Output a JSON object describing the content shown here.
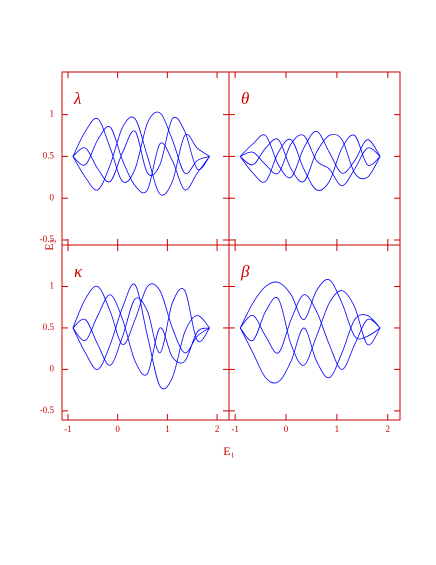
{
  "axis_titles": {
    "x": "E₁",
    "y": "E₂"
  },
  "chart_data": [
    {
      "type": "line",
      "label": "λ",
      "xlim": [
        -1.12,
        2.24
      ],
      "ylim": [
        -0.56,
        1.51
      ],
      "xticks": [
        -1,
        0,
        1,
        2
      ],
      "yticks": [
        -0.5,
        0,
        0.5,
        1
      ],
      "color": "#0000ff",
      "x": [
        -0.9,
        -0.65,
        -0.4,
        -0.15,
        0.1,
        0.35,
        0.6,
        0.85,
        1.1,
        1.35,
        1.6,
        1.85
      ],
      "series": [
        {
          "values": [
            0.5,
            0.8,
            0.95,
            0.6,
            0.2,
            0.35,
            0.9,
            1.02,
            0.7,
            0.3,
            0.45,
            0.5
          ]
        },
        {
          "values": [
            0.5,
            0.25,
            0.1,
            0.4,
            0.85,
            0.95,
            0.5,
            0.05,
            0.2,
            0.75,
            0.6,
            0.5
          ]
        },
        {
          "values": [
            0.5,
            0.6,
            0.35,
            0.2,
            0.55,
            0.8,
            0.3,
            0.4,
            0.95,
            0.8,
            0.35,
            0.5
          ]
        },
        {
          "values": [
            0.5,
            0.4,
            0.7,
            0.85,
            0.45,
            0.15,
            0.1,
            0.65,
            0.45,
            0.1,
            0.3,
            0.5
          ]
        }
      ]
    },
    {
      "type": "line",
      "label": "θ",
      "xlim": [
        -1.12,
        2.24
      ],
      "ylim": [
        -0.56,
        1.51
      ],
      "xticks": [
        -1,
        0,
        1,
        2
      ],
      "yticks": [
        -0.5,
        0,
        0.5,
        1
      ],
      "color": "#0000ff",
      "x": [
        -0.9,
        -0.65,
        -0.4,
        -0.15,
        0.1,
        0.35,
        0.6,
        0.85,
        1.1,
        1.35,
        1.6,
        1.85
      ],
      "series": [
        {
          "values": [
            0.5,
            0.65,
            0.75,
            0.4,
            0.25,
            0.6,
            0.8,
            0.55,
            0.3,
            0.45,
            0.7,
            0.5
          ]
        },
        {
          "values": [
            0.5,
            0.3,
            0.2,
            0.55,
            0.7,
            0.35,
            0.1,
            0.2,
            0.6,
            0.75,
            0.4,
            0.5
          ]
        },
        {
          "values": [
            0.5,
            0.55,
            0.4,
            0.3,
            0.65,
            0.75,
            0.45,
            0.35,
            0.15,
            0.35,
            0.6,
            0.5
          ]
        },
        {
          "values": [
            0.5,
            0.4,
            0.6,
            0.7,
            0.35,
            0.2,
            0.55,
            0.75,
            0.7,
            0.3,
            0.25,
            0.5
          ]
        }
      ]
    },
    {
      "type": "line",
      "label": "κ",
      "xlim": [
        -1.12,
        2.24
      ],
      "ylim": [
        -0.61,
        1.5
      ],
      "xticks": [
        -1,
        0,
        1,
        2
      ],
      "yticks": [
        -0.5,
        0,
        0.5,
        1
      ],
      "color": "#0000ff",
      "x": [
        -0.9,
        -0.65,
        -0.4,
        -0.15,
        0.1,
        0.35,
        0.6,
        0.85,
        1.1,
        1.35,
        1.6,
        1.85
      ],
      "series": [
        {
          "values": [
            0.5,
            0.85,
            1.0,
            0.7,
            0.3,
            0.6,
            1.0,
            0.95,
            0.5,
            0.2,
            0.4,
            0.5
          ]
        },
        {
          "values": [
            0.5,
            0.2,
            0.0,
            0.3,
            0.75,
            1.02,
            0.4,
            -0.2,
            -0.1,
            0.45,
            0.65,
            0.5
          ]
        },
        {
          "values": [
            0.5,
            0.6,
            0.3,
            0.05,
            0.4,
            0.85,
            0.7,
            0.2,
            0.8,
            0.95,
            0.35,
            0.5
          ]
        },
        {
          "values": [
            0.5,
            0.35,
            0.65,
            0.9,
            0.6,
            0.1,
            -0.05,
            0.5,
            0.15,
            0.1,
            0.45,
            0.5
          ]
        }
      ]
    },
    {
      "type": "line",
      "label": "β",
      "xlim": [
        -1.12,
        2.24
      ],
      "ylim": [
        -0.61,
        1.5
      ],
      "xticks": [
        -1,
        0,
        1,
        2
      ],
      "yticks": [
        -0.5,
        0,
        0.5,
        1
      ],
      "color": "#0000ff",
      "x": [
        -0.9,
        -0.65,
        -0.4,
        -0.15,
        0.1,
        0.35,
        0.6,
        0.85,
        1.1,
        1.35,
        1.6,
        1.85
      ],
      "series": [
        {
          "values": [
            0.5,
            0.8,
            1.0,
            1.05,
            0.9,
            0.6,
            0.95,
            1.08,
            0.8,
            0.4,
            0.4,
            0.5
          ]
        },
        {
          "values": [
            0.5,
            0.2,
            -0.1,
            -0.15,
            0.1,
            0.5,
            0.1,
            -0.1,
            0.2,
            0.6,
            0.65,
            0.5
          ]
        },
        {
          "values": [
            0.5,
            0.65,
            0.4,
            0.2,
            0.6,
            0.9,
            0.7,
            0.3,
            0.0,
            0.3,
            0.6,
            0.5
          ]
        },
        {
          "values": [
            0.5,
            0.35,
            0.7,
            0.85,
            0.3,
            0.05,
            0.4,
            0.8,
            0.95,
            0.75,
            0.3,
            0.5
          ]
        }
      ]
    }
  ]
}
